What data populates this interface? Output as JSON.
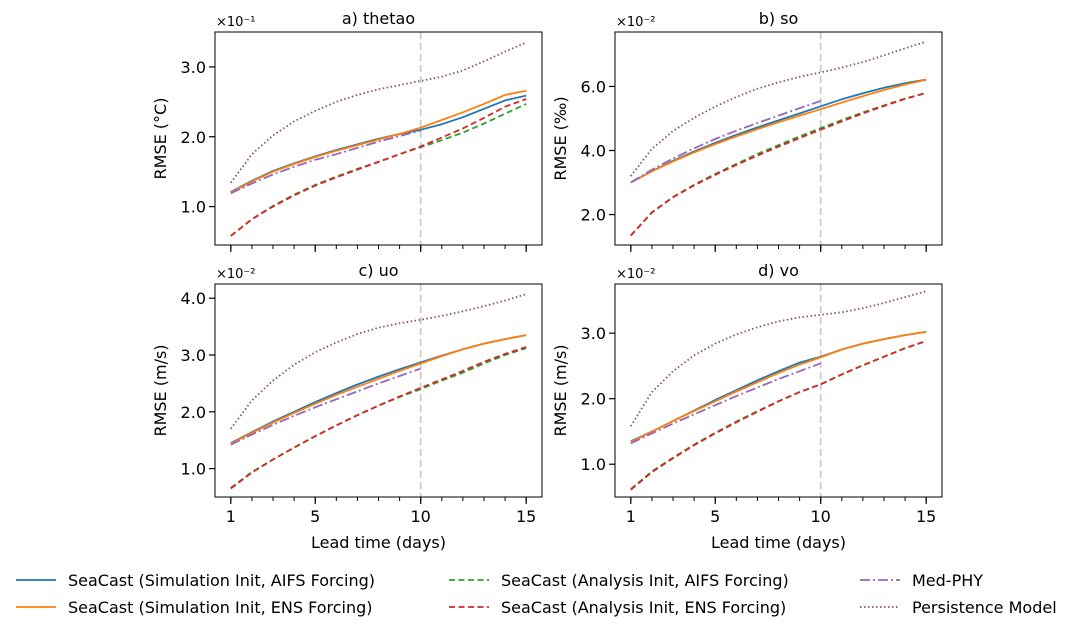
{
  "colors": {
    "sim_aifs": "#1f77b4",
    "sim_ens": "#ff7f0e",
    "ana_aifs": "#2ca02c",
    "ana_ens": "#d62728",
    "medphy": "#9467bd",
    "persistence": "#8c564b",
    "vline": "#cccccc"
  },
  "legend": [
    {
      "key": "sim_aifs",
      "label": "SeaCast (Simulation Init, AIFS Forcing)",
      "dash": "solid"
    },
    {
      "key": "sim_ens",
      "label": "SeaCast (Simulation Init, ENS Forcing)",
      "dash": "solid"
    },
    {
      "key": "ana_aifs",
      "label": "SeaCast (Analysis Init, AIFS Forcing)",
      "dash": "dashed"
    },
    {
      "key": "ana_ens",
      "label": "SeaCast (Analysis Init, ENS Forcing)",
      "dash": "dashed"
    },
    {
      "key": "medphy",
      "label": "Med-PHY",
      "dash": "dashdot"
    },
    {
      "key": "persistence",
      "label": "Persistence Model",
      "dash": "dotted"
    }
  ],
  "chart_data": [
    {
      "type": "line",
      "title": "a) thetao",
      "ylabel": "RMSE (°C)",
      "xlabel": "",
      "scale_label": "×10⁻¹",
      "ylim": [
        0.45,
        3.5
      ],
      "yticks": [
        1.0,
        2.0,
        3.0
      ],
      "ytick_labels": [
        "1.0",
        "2.0",
        "3.0"
      ],
      "xlim": [
        0.25,
        15.75
      ],
      "xticks": [
        1,
        5,
        10,
        15
      ],
      "xtick_labels": [],
      "vline": 10,
      "x": [
        1,
        2,
        3,
        4,
        5,
        6,
        7,
        8,
        9,
        10,
        11,
        12,
        13,
        14,
        15
      ],
      "series": [
        {
          "key": "sim_aifs",
          "values": [
            1.21,
            1.37,
            1.51,
            1.62,
            1.72,
            1.81,
            1.89,
            1.97,
            2.04,
            2.1,
            2.18,
            2.28,
            2.4,
            2.52,
            2.59
          ]
        },
        {
          "key": "sim_ens",
          "values": [
            1.2,
            1.36,
            1.5,
            1.61,
            1.71,
            1.8,
            1.88,
            1.96,
            2.04,
            2.13,
            2.24,
            2.35,
            2.47,
            2.6,
            2.66
          ]
        },
        {
          "key": "ana_aifs",
          "values": [
            0.58,
            0.82,
            1.01,
            1.17,
            1.31,
            1.43,
            1.54,
            1.64,
            1.75,
            1.85,
            1.95,
            2.06,
            2.19,
            2.33,
            2.47
          ]
        },
        {
          "key": "ana_ens",
          "values": [
            0.58,
            0.82,
            1.0,
            1.16,
            1.3,
            1.42,
            1.53,
            1.64,
            1.75,
            1.86,
            1.99,
            2.12,
            2.27,
            2.43,
            2.54
          ]
        },
        {
          "key": "medphy",
          "x": [
            1,
            2,
            3,
            4,
            5,
            6,
            7,
            8,
            9,
            10
          ],
          "values": [
            1.19,
            1.33,
            1.46,
            1.57,
            1.67,
            1.75,
            1.84,
            1.93,
            2.01,
            2.09
          ]
        },
        {
          "key": "persistence",
          "values": [
            1.34,
            1.75,
            2.02,
            2.22,
            2.37,
            2.5,
            2.6,
            2.68,
            2.74,
            2.8,
            2.86,
            2.95,
            3.08,
            3.22,
            3.35
          ]
        }
      ]
    },
    {
      "type": "line",
      "title": "b) so",
      "ylabel": "RMSE (‰)",
      "xlabel": "",
      "scale_label": "×10⁻²",
      "ylim": [
        1.05,
        7.7
      ],
      "yticks": [
        2.0,
        4.0,
        6.0
      ],
      "ytick_labels": [
        "2.0",
        "4.0",
        "6.0"
      ],
      "xlim": [
        0.25,
        15.75
      ],
      "xticks": [
        1,
        5,
        10,
        15
      ],
      "xtick_labels": [],
      "vline": 10,
      "x": [
        1,
        2,
        3,
        4,
        5,
        6,
        7,
        8,
        9,
        10,
        11,
        12,
        13,
        14,
        15
      ],
      "series": [
        {
          "key": "sim_aifs",
          "values": [
            3.0,
            3.35,
            3.68,
            3.97,
            4.24,
            4.49,
            4.72,
            4.94,
            5.16,
            5.38,
            5.6,
            5.79,
            5.96,
            6.1,
            6.21
          ]
        },
        {
          "key": "sim_ens",
          "values": [
            3.0,
            3.35,
            3.66,
            3.94,
            4.2,
            4.44,
            4.67,
            4.88,
            5.09,
            5.29,
            5.5,
            5.7,
            5.89,
            6.06,
            6.21
          ]
        },
        {
          "key": "ana_aifs",
          "values": [
            1.35,
            2.07,
            2.55,
            2.93,
            3.27,
            3.58,
            3.89,
            4.17,
            4.44,
            4.7,
            4.95,
            5.19,
            5.41,
            5.62,
            5.8
          ]
        },
        {
          "key": "ana_ens",
          "values": [
            1.34,
            2.06,
            2.54,
            2.91,
            3.24,
            3.55,
            3.84,
            4.12,
            4.39,
            4.65,
            4.91,
            5.16,
            5.39,
            5.61,
            5.8
          ]
        },
        {
          "key": "medphy",
          "x": [
            1,
            2,
            3,
            4,
            5,
            6,
            7,
            8,
            9,
            10
          ],
          "values": [
            3.0,
            3.4,
            3.75,
            4.07,
            4.36,
            4.62,
            4.86,
            5.09,
            5.32,
            5.55
          ]
        },
        {
          "key": "persistence",
          "values": [
            3.2,
            4.05,
            4.61,
            5.02,
            5.37,
            5.67,
            5.93,
            6.13,
            6.3,
            6.44,
            6.59,
            6.76,
            6.97,
            7.19,
            7.4
          ]
        }
      ]
    },
    {
      "type": "line",
      "title": "c) uo",
      "ylabel": "RMSE (m/s)",
      "xlabel": "Lead time (days)",
      "scale_label": "×10⁻²",
      "ylim": [
        0.5,
        4.25
      ],
      "yticks": [
        1.0,
        2.0,
        3.0,
        4.0
      ],
      "ytick_labels": [
        "1.0",
        "2.0",
        "3.0",
        "4.0"
      ],
      "xlim": [
        0.25,
        15.75
      ],
      "xticks": [
        1,
        5,
        10,
        15
      ],
      "xtick_labels": [
        "1",
        "5",
        "10",
        "15"
      ],
      "vline": 10,
      "x": [
        1,
        2,
        3,
        4,
        5,
        6,
        7,
        8,
        9,
        10,
        11,
        12,
        13,
        14,
        15
      ],
      "series": [
        {
          "key": "sim_aifs",
          "values": [
            1.45,
            1.64,
            1.83,
            2.0,
            2.17,
            2.33,
            2.48,
            2.62,
            2.75,
            2.87,
            2.99,
            3.1,
            3.2,
            3.28,
            3.35
          ]
        },
        {
          "key": "sim_ens",
          "values": [
            1.44,
            1.63,
            1.81,
            1.98,
            2.14,
            2.3,
            2.44,
            2.58,
            2.72,
            2.85,
            2.98,
            3.1,
            3.2,
            3.28,
            3.35
          ]
        },
        {
          "key": "ana_aifs",
          "values": [
            0.66,
            0.94,
            1.16,
            1.37,
            1.57,
            1.76,
            1.94,
            2.11,
            2.26,
            2.4,
            2.55,
            2.69,
            2.85,
            3.0,
            3.12
          ]
        },
        {
          "key": "ana_ens",
          "values": [
            0.65,
            0.93,
            1.16,
            1.37,
            1.57,
            1.76,
            1.94,
            2.11,
            2.27,
            2.42,
            2.57,
            2.72,
            2.88,
            3.02,
            3.14
          ]
        },
        {
          "key": "medphy",
          "x": [
            1,
            2,
            3,
            4,
            5,
            6,
            7,
            8,
            9,
            10
          ],
          "values": [
            1.42,
            1.6,
            1.77,
            1.93,
            2.08,
            2.22,
            2.36,
            2.5,
            2.63,
            2.76
          ]
        },
        {
          "key": "persistence",
          "values": [
            1.7,
            2.2,
            2.55,
            2.83,
            3.05,
            3.22,
            3.37,
            3.48,
            3.56,
            3.62,
            3.69,
            3.77,
            3.86,
            3.96,
            4.07
          ]
        }
      ]
    },
    {
      "type": "line",
      "title": "d) vo",
      "ylabel": "RMSE (m/s)",
      "xlabel": "Lead time (days)",
      "scale_label": "×10⁻²",
      "ylim": [
        0.5,
        3.75
      ],
      "yticks": [
        1.0,
        2.0,
        3.0
      ],
      "ytick_labels": [
        "1.0",
        "2.0",
        "3.0"
      ],
      "xlim": [
        0.25,
        15.75
      ],
      "xticks": [
        1,
        5,
        10,
        15
      ],
      "xtick_labels": [
        "1",
        "5",
        "10",
        "15"
      ],
      "vline": 10,
      "x": [
        1,
        2,
        3,
        4,
        5,
        6,
        7,
        8,
        9,
        10,
        11,
        12,
        13,
        14,
        15
      ],
      "series": [
        {
          "key": "sim_aifs",
          "values": [
            1.35,
            1.5,
            1.66,
            1.82,
            1.98,
            2.13,
            2.28,
            2.42,
            2.55,
            2.64,
            2.75,
            2.84,
            2.91,
            2.97,
            3.02
          ]
        },
        {
          "key": "sim_ens",
          "values": [
            1.34,
            1.5,
            1.66,
            1.81,
            1.96,
            2.11,
            2.25,
            2.39,
            2.52,
            2.63,
            2.75,
            2.84,
            2.91,
            2.97,
            3.02
          ]
        },
        {
          "key": "ana_aifs",
          "values": [
            0.62,
            0.89,
            1.1,
            1.3,
            1.48,
            1.65,
            1.81,
            1.96,
            2.1,
            2.22,
            2.37,
            2.51,
            2.64,
            2.77,
            2.88
          ]
        },
        {
          "key": "ana_ens",
          "values": [
            0.61,
            0.88,
            1.09,
            1.29,
            1.47,
            1.64,
            1.8,
            1.96,
            2.1,
            2.22,
            2.37,
            2.51,
            2.64,
            2.77,
            2.88
          ]
        },
        {
          "key": "medphy",
          "x": [
            1,
            2,
            3,
            4,
            5,
            6,
            7,
            8,
            9,
            10
          ],
          "values": [
            1.32,
            1.47,
            1.62,
            1.76,
            1.9,
            2.04,
            2.17,
            2.3,
            2.42,
            2.54
          ]
        },
        {
          "key": "persistence",
          "values": [
            1.58,
            2.1,
            2.42,
            2.66,
            2.84,
            2.98,
            3.09,
            3.18,
            3.24,
            3.28,
            3.32,
            3.38,
            3.46,
            3.55,
            3.64
          ]
        }
      ]
    }
  ]
}
